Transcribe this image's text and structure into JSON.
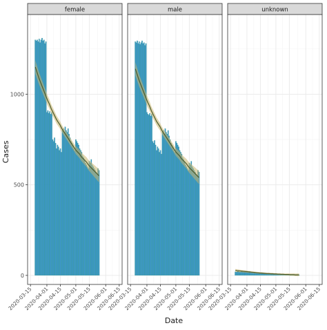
{
  "chart_data": {
    "type": "bar",
    "xlabel": "Date",
    "ylabel": "Cases",
    "ylim": [
      -50,
      1440
    ],
    "y_ticks": [
      0,
      500,
      1000
    ],
    "x_tick_labels": [
      "2020-03-15",
      "2020-04-01",
      "2020-04-15",
      "2020-05-01",
      "2020-05-15",
      "2020-06-01",
      "2020-06-15"
    ],
    "x_start": "2020-03-20",
    "overlay": "smoothed trend line with confidence band",
    "colors": {
      "bar_fill": "#3d95c9",
      "bar_edge": "#2f9a8a",
      "trend_line": "#4d5a2a",
      "trend_band": "#c8b46e",
      "strip_fill": "#d9d9d9",
      "grid": "#ebebeb"
    },
    "panels": [
      {
        "label": "female",
        "values": [
          1300,
          1295,
          1300,
          1290,
          1305,
          1285,
          1300,
          1310,
          1295,
          1300,
          1280,
          1290,
          900,
          910,
          895,
          905,
          890,
          900,
          750,
          740,
          760,
          730,
          700,
          720,
          710,
          690,
          700,
          680,
          800,
          810,
          790,
          820,
          800,
          790,
          810,
          780,
          760,
          740,
          730,
          720,
          700,
          690,
          750,
          740,
          730,
          720,
          700,
          690,
          680,
          660,
          650,
          640,
          620,
          610,
          600,
          590,
          630,
          620,
          640,
          610,
          600,
          590,
          580,
          570,
          560,
          590,
          580
        ],
        "trend": [
          1150,
          1120,
          1090,
          1065,
          1040,
          1015,
          990,
          965,
          945,
          920,
          900,
          880,
          860,
          845,
          830,
          810,
          795,
          780,
          765,
          750,
          735,
          720,
          705,
          690,
          680,
          670,
          655,
          645,
          635,
          625,
          610,
          600,
          590,
          580,
          570,
          560,
          550
        ]
      },
      {
        "label": "male",
        "values": [
          1290,
          1285,
          1295,
          1280,
          1290,
          1275,
          1285,
          1295,
          1280,
          1285,
          1270,
          1280,
          900,
          890,
          885,
          895,
          880,
          890,
          740,
          730,
          745,
          720,
          690,
          710,
          700,
          680,
          690,
          670,
          790,
          800,
          780,
          810,
          790,
          780,
          800,
          770,
          750,
          730,
          720,
          710,
          690,
          680,
          740,
          730,
          720,
          710,
          690,
          680,
          670,
          650,
          640,
          630,
          610,
          600,
          590,
          580,
          620,
          610,
          630,
          600,
          590,
          580,
          570,
          560,
          550,
          580,
          570
        ],
        "trend": [
          1140,
          1110,
          1080,
          1055,
          1030,
          1005,
          980,
          955,
          935,
          910,
          890,
          870,
          850,
          835,
          820,
          800,
          785,
          770,
          755,
          740,
          725,
          710,
          695,
          680,
          670,
          660,
          645,
          635,
          625,
          615,
          600,
          590,
          580,
          570,
          560,
          550,
          540
        ]
      },
      {
        "label": "unknown",
        "values": [
          20,
          18,
          22,
          25,
          20,
          18,
          24,
          22,
          20,
          18,
          22,
          20,
          18,
          16,
          20,
          22,
          18,
          16,
          14,
          16,
          18,
          15,
          14,
          12,
          15,
          14,
          12,
          13,
          12,
          11,
          12,
          10,
          11,
          10,
          9,
          10,
          9,
          8,
          9,
          8,
          7,
          8,
          7,
          6,
          7,
          6,
          6,
          5,
          6,
          5,
          5,
          4,
          5,
          4,
          4,
          4,
          3,
          4,
          3,
          3,
          3,
          3,
          2,
          3,
          2,
          2,
          2
        ],
        "trend": [
          28,
          26,
          25,
          24,
          23,
          22,
          21,
          20,
          19,
          18,
          17,
          16,
          15,
          14,
          13,
          13,
          12,
          11,
          10,
          10,
          9,
          9,
          8,
          8,
          7,
          7,
          6,
          6,
          5,
          5,
          5,
          4,
          4,
          4,
          3,
          3,
          3
        ]
      }
    ]
  }
}
